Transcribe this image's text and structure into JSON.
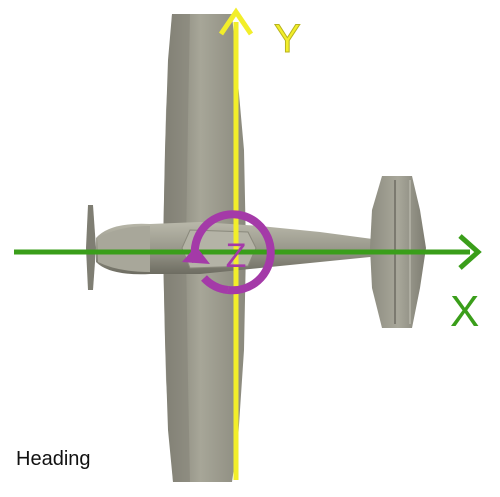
{
  "caption": "Heading",
  "axes": {
    "x": {
      "label": "X",
      "color": "#3a9e1a"
    },
    "y": {
      "label": "Y",
      "color": "#f2ee2a"
    },
    "z": {
      "label": "Z",
      "color": "#a43aa8"
    }
  },
  "aircraft": {
    "body_color": "#9d9c8e",
    "shadow_color": "#6f6e63",
    "highlight_color": "#c9c8bb"
  }
}
